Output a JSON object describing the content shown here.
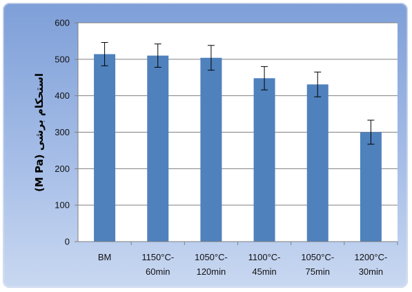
{
  "chart_data": {
    "type": "bar",
    "categories": [
      [
        "BM"
      ],
      [
        "1150°C-",
        "60min"
      ],
      [
        "1050°C-",
        "120min"
      ],
      [
        "1100°C-",
        "45min"
      ],
      [
        "1050°C-",
        "75min"
      ],
      [
        "1200°C-",
        "30min"
      ]
    ],
    "values": [
      514,
      510,
      504,
      448,
      431,
      300
    ],
    "error": [
      32,
      32,
      34,
      32,
      34,
      33
    ],
    "ylabel": "استحکام برشی (M Pa)",
    "ylim": [
      0,
      600
    ],
    "yticks": [
      0,
      100,
      200,
      300,
      400,
      500,
      600
    ],
    "grid": true,
    "legend": "none",
    "colors": {
      "bar": "#4f81bd",
      "background_top": "#7e9fd8",
      "background_bottom": "#c9d8f1",
      "plot_area": "#ffffff",
      "gridline": "#7f7f7f"
    }
  }
}
